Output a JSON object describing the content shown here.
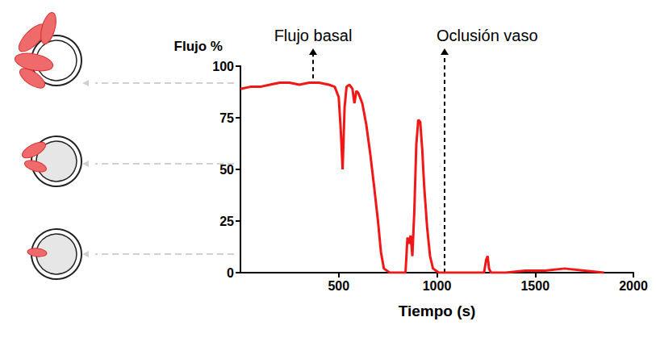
{
  "chart_data": {
    "type": "line",
    "xlabel": "Tiempo (s)",
    "ylabel": "Flujo %",
    "x": [
      0,
      50,
      100,
      150,
      200,
      250,
      300,
      350,
      400,
      450,
      480,
      500,
      510,
      520,
      530,
      540,
      555,
      570,
      580,
      590,
      600,
      620,
      640,
      660,
      680,
      700,
      715,
      730,
      760,
      800,
      840,
      850,
      858,
      866,
      875,
      885,
      895,
      905,
      915,
      925,
      935,
      950,
      965,
      980,
      995,
      1010,
      1100,
      1200,
      1240,
      1250,
      1258,
      1265,
      1275,
      1350,
      1450,
      1550,
      1650,
      1750,
      1850
    ],
    "values": [
      89,
      90,
      90,
      91,
      92,
      92,
      91,
      92,
      92,
      91,
      90,
      85,
      70,
      50,
      80,
      90,
      91,
      89,
      82,
      88,
      87,
      82,
      72,
      58,
      42,
      25,
      10,
      2,
      0,
      0,
      0,
      17,
      14,
      18,
      8,
      30,
      62,
      74,
      73,
      60,
      42,
      22,
      8,
      2,
      1,
      0,
      0,
      0,
      0,
      6,
      8,
      2,
      0,
      0,
      1,
      1,
      2,
      1,
      0
    ],
    "color": "#f21616",
    "xlim": [
      0,
      2000
    ],
    "xticks": [
      500,
      1000,
      1500,
      2000
    ],
    "ylim": [
      0,
      100
    ],
    "yticks": [
      0,
      25,
      50,
      75,
      100
    ],
    "grid": false,
    "annotations": [
      {
        "text": "Flujo basal",
        "x": 370,
        "y": 94
      },
      {
        "text": "Oclusión vaso",
        "x": 1040,
        "y": 0
      }
    ]
  }
}
